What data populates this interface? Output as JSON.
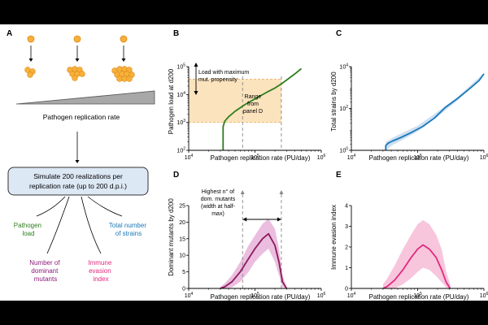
{
  "panel_a": {
    "label": "A",
    "wedge_label": "Pathogen replication rate",
    "box_text": [
      "Simulate 200 realizations per",
      "replication rate (up to 200 d.p.i.)"
    ],
    "outputs": [
      {
        "lines": [
          "Pathogen",
          "load"
        ],
        "color": "#2e7d1e"
      },
      {
        "lines": [
          "Total number",
          "of strains"
        ],
        "color": "#1a78b8"
      },
      {
        "lines": [
          "Number of",
          "dominant",
          "mutants"
        ],
        "color": "#8b1a7a"
      },
      {
        "lines": [
          "Immune",
          "evasion",
          "index"
        ],
        "color": "#e0297f"
      }
    ],
    "colors": {
      "virion": "#f6b03c",
      "wedge": "#888888",
      "box_fill": "#dde8f5",
      "box_stroke": "#333333"
    }
  },
  "chart_data": [
    {
      "panel": "B",
      "type": "line",
      "xlabel": "Pathogen replication rate (PU/day)",
      "ylabel": "Pathogen load at d200",
      "xscale": "log",
      "yscale": "log",
      "xlim": [
        10000,
        1000000
      ],
      "ylim": [
        100,
        100000
      ],
      "xticks": [
        {
          "v": 10000,
          "base": "10",
          "exp": "4"
        },
        {
          "v": 100000,
          "base": "10",
          "exp": "5"
        },
        {
          "v": 1000000,
          "base": "10",
          "exp": "6"
        }
      ],
      "yticks": [
        {
          "v": 100,
          "base": "10",
          "exp": "2"
        },
        {
          "v": 1000,
          "base": "10",
          "exp": "3"
        },
        {
          "v": 10000,
          "base": "10",
          "exp": "4"
        },
        {
          "v": 100000,
          "base": "10",
          "exp": "5"
        }
      ],
      "series": [
        {
          "color": "#2e7d1e",
          "x": [
            33000,
            33000,
            35000,
            40000,
            50000,
            70000,
            100000,
            150000,
            200000,
            250000,
            300000,
            400000,
            500000
          ],
          "y": [
            100,
            700,
            1100,
            1600,
            2500,
            4300,
            7000,
            12000,
            17000,
            24000,
            33000,
            55000,
            85000
          ]
        }
      ],
      "shaded_band": {
        "y": [
          1000,
          35000
        ],
        "color": "#fbe3bd"
      },
      "vlines": [
        65000,
        250000
      ],
      "annotations": [
        {
          "lines": [
            "Load with maximum",
            "mut. propensity"
          ]
        },
        {
          "lines": [
            "Range",
            "from",
            "panel D"
          ]
        }
      ]
    },
    {
      "panel": "C",
      "type": "line",
      "xlabel": "Pathogen replication rate (PU/day)",
      "ylabel": "Total strains by d200",
      "xscale": "log",
      "yscale": "log",
      "xlim": [
        10000,
        1000000
      ],
      "ylim": [
        1,
        10000
      ],
      "xticks": [
        {
          "v": 10000,
          "base": "10",
          "exp": "4"
        },
        {
          "v": 100000,
          "base": "10",
          "exp": "5"
        },
        {
          "v": 1000000,
          "base": "10",
          "exp": "6"
        }
      ],
      "yticks": [
        {
          "v": 1,
          "base": "10",
          "exp": "0"
        },
        {
          "v": 100,
          "base": "10",
          "exp": "2"
        },
        {
          "v": 10000,
          "base": "10",
          "exp": "4"
        }
      ],
      "series": [
        {
          "color": "#1a78b8",
          "x": [
            33000,
            33000,
            36000,
            42000,
            55000,
            80000,
            120000,
            180000,
            260000,
            400000,
            600000,
            850000,
            1000000
          ],
          "y": [
            1,
            1.7,
            2.2,
            2.8,
            4,
            7,
            14,
            35,
            110,
            300,
            850,
            2200,
            4500
          ]
        }
      ],
      "band": {
        "color": "#c4daf0",
        "x": [
          33000,
          42000,
          60000,
          100000,
          200000,
          400000,
          1000000
        ],
        "lo": [
          1,
          1.8,
          3.2,
          8,
          40,
          240,
          4000
        ],
        "hi": [
          2.5,
          4,
          7,
          15,
          70,
          360,
          5000
        ]
      }
    },
    {
      "panel": "D",
      "type": "line",
      "xlabel": "Pathogen replication rate (PU/day)",
      "ylabel": "Dominant mutants by d200",
      "xscale": "log",
      "yscale": "linear",
      "xlim": [
        10000,
        1000000
      ],
      "ylim": [
        0,
        25
      ],
      "xticks": [
        {
          "v": 10000,
          "base": "10",
          "exp": "4"
        },
        {
          "v": 100000,
          "base": "10",
          "exp": "5"
        },
        {
          "v": 1000000,
          "base": "10",
          "exp": "6"
        }
      ],
      "yticks": [
        {
          "v": 0,
          "label": "0"
        },
        {
          "v": 5,
          "label": "5"
        },
        {
          "v": 10,
          "label": "10"
        },
        {
          "v": 15,
          "label": "15"
        },
        {
          "v": 20,
          "label": "20"
        },
        {
          "v": 25,
          "label": "25"
        }
      ],
      "series": [
        {
          "color": "#8b1a5a",
          "x": [
            30000,
            35000,
            45000,
            60000,
            80000,
            100000,
            130000,
            160000,
            200000,
            230000,
            260000,
            300000
          ],
          "y": [
            0,
            0.5,
            2,
            5,
            9,
            12,
            15,
            16.5,
            13,
            8,
            2,
            0
          ]
        }
      ],
      "band": {
        "color": "#e8b3d9",
        "x": [
          30000,
          35000,
          45000,
          60000,
          80000,
          100000,
          130000,
          160000,
          200000,
          230000,
          260000,
          300000
        ],
        "lo": [
          0,
          0,
          0.3,
          2,
          5,
          8,
          10.5,
          12,
          8,
          4,
          0.5,
          0
        ],
        "hi": [
          0.5,
          1.5,
          4,
          8,
          13,
          16,
          19.5,
          21,
          18,
          12,
          4,
          0.5
        ]
      },
      "vlines": [
        65000,
        250000
      ],
      "annotations": [
        {
          "lines": [
            "Highest n° of",
            "dom. mutants",
            "(width at half-",
            "max)"
          ]
        }
      ]
    },
    {
      "panel": "E",
      "type": "line",
      "xlabel": "Pathogen replication rate (PU/day)",
      "ylabel": "Immune evasion index",
      "xscale": "log",
      "yscale": "linear",
      "xlim": [
        10000,
        1000000
      ],
      "ylim": [
        0,
        4
      ],
      "xticks": [
        {
          "v": 10000,
          "base": "10",
          "exp": "4"
        },
        {
          "v": 100000,
          "base": "10",
          "exp": "5"
        },
        {
          "v": 1000000,
          "base": "10",
          "exp": "6"
        }
      ],
      "yticks": [
        {
          "v": 0,
          "label": "0"
        },
        {
          "v": 1,
          "label": "1"
        },
        {
          "v": 2,
          "label": "2"
        },
        {
          "v": 3,
          "label": "3"
        },
        {
          "v": 4,
          "label": "4"
        }
      ],
      "series": [
        {
          "color": "#e0297f",
          "x": [
            30000,
            35000,
            45000,
            60000,
            80000,
            100000,
            120000,
            150000,
            190000,
            230000,
            270000,
            310000
          ],
          "y": [
            0,
            0.1,
            0.4,
            0.9,
            1.5,
            1.9,
            2.1,
            1.9,
            1.5,
            0.9,
            0.3,
            0
          ]
        }
      ],
      "band": {
        "color": "#f6bcd6",
        "x": [
          30000,
          35000,
          45000,
          60000,
          80000,
          100000,
          120000,
          150000,
          190000,
          230000,
          270000,
          310000
        ],
        "lo": [
          0,
          0,
          0,
          0.2,
          0.5,
          0.8,
          1.0,
          0.9,
          0.6,
          0.3,
          0.05,
          0
        ],
        "hi": [
          0.2,
          0.5,
          1.1,
          1.9,
          2.6,
          3.1,
          3.3,
          3.1,
          2.6,
          1.9,
          0.8,
          0.2
        ]
      }
    }
  ]
}
